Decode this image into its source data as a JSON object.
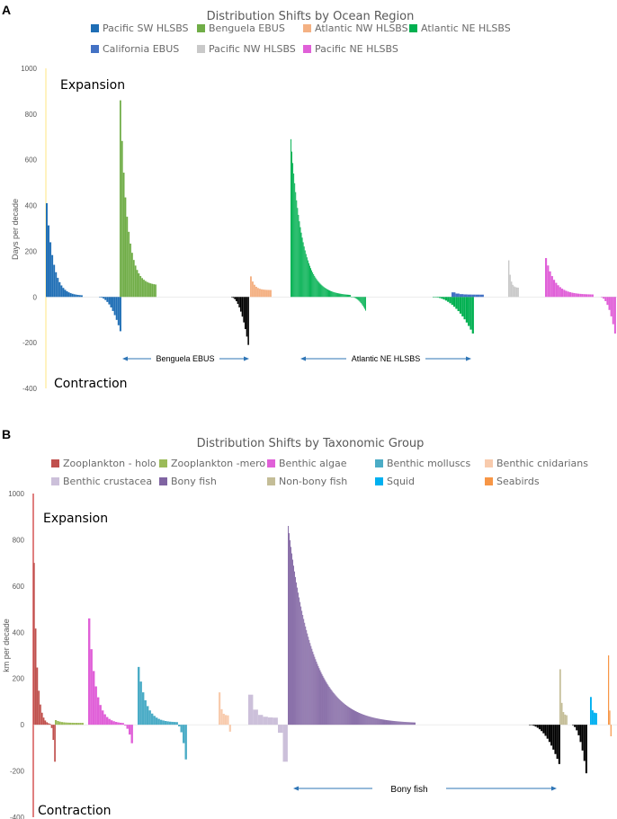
{
  "chart_data": [
    {
      "panel": "A",
      "type": "bar",
      "title": "Distribution Shifts by Ocean Region",
      "ylabel": "Days per decade",
      "ylim": [
        -400,
        1000
      ],
      "yticks": [
        -400,
        -200,
        0,
        200,
        400,
        600,
        800,
        1000
      ],
      "expansion_label": "Expansion",
      "contraction_label": "Contraction",
      "legend": [
        {
          "name": "Pacific SW HLSBS",
          "color": "#1f6eb5"
        },
        {
          "name": "Benguela EBUS",
          "color": "#70ad47"
        },
        {
          "name": "Atlantic NW HLSBS",
          "color": "#f4b183"
        },
        {
          "name": "Atlantic NE HLSBS",
          "color": "#00b050"
        },
        {
          "name": "California EBUS",
          "color": "#4472c4"
        },
        {
          "name": "Pacific NW HLSBS",
          "color": "#c9c9c9"
        },
        {
          "name": "Pacific NE HLSBS",
          "color": "#e060d8"
        }
      ],
      "groups": [
        {
          "name": "Pacific SW HLSBS",
          "color": "#1f6eb5",
          "n": 20,
          "max": 410,
          "min": 0,
          "tail": 5
        },
        {
          "name": "Pacific SW HLSBS (contraction)",
          "color": "#1f6eb5",
          "n": 12,
          "max": 0,
          "min": -150,
          "tail": 0
        },
        {
          "name": "Benguela EBUS",
          "color": "#70ad47",
          "n": 22,
          "max": 860,
          "min": 50,
          "tail": 50
        },
        {
          "name": "Benguela EBUS (contraction)",
          "color": "#000000",
          "n": 12,
          "max": 0,
          "min": -210,
          "tail": 0
        },
        {
          "name": "Atlantic NW HLSBS",
          "color": "#f4b183",
          "n": 12,
          "max": 90,
          "min": 0,
          "tail": 30
        },
        {
          "name": "Atlantic NE HLSBS",
          "color": "#00b050",
          "n": 80,
          "max": 690,
          "min": -60,
          "tail": 5
        },
        {
          "name": "Atlantic NE HLSBS (contraction)",
          "color": "#00b050",
          "n": 20,
          "max": 0,
          "min": -160,
          "tail": 0
        },
        {
          "name": "California EBUS",
          "color": "#4472c4",
          "n": 8,
          "max": 20,
          "min": 0,
          "tail": 10
        },
        {
          "name": "Pacific NW HLSBS",
          "color": "#c9c9c9",
          "n": 8,
          "max": 160,
          "min": 0,
          "tail": 40
        },
        {
          "name": "Pacific NE HLSBS",
          "color": "#e060d8",
          "n": 24,
          "max": 170,
          "min": 0,
          "tail": 10
        },
        {
          "name": "Pacific NE HLSBS (contraction)",
          "color": "#e060d8",
          "n": 8,
          "max": 0,
          "min": -160,
          "tail": 0
        }
      ],
      "annotations": [
        {
          "text": "Benguela EBUS"
        },
        {
          "text": "Atlantic NE HLSBS"
        }
      ]
    },
    {
      "panel": "B",
      "type": "bar",
      "title": "Distribution Shifts by Taxonomic Group",
      "ylabel": "km per decade",
      "ylim": [
        -400,
        1000
      ],
      "yticks": [
        -400,
        -200,
        0,
        200,
        400,
        600,
        800,
        1000
      ],
      "expansion_label": "Expansion",
      "contraction_label": "Contraction",
      "legend": [
        {
          "name": "Zooplankton - holo",
          "color": "#c0504d"
        },
        {
          "name": "Zooplankton -mero",
          "color": "#9bbb59"
        },
        {
          "name": "Benthic algae",
          "color": "#e060d8"
        },
        {
          "name": "Benthic molluscs",
          "color": "#4bacc6"
        },
        {
          "name": "Benthic cnidarians",
          "color": "#f8cbad"
        },
        {
          "name": "Benthic crustacea",
          "color": "#ccc0da"
        },
        {
          "name": "Bony fish",
          "color": "#8064a2"
        },
        {
          "name": "Non-bony fish",
          "color": "#c4bd97"
        },
        {
          "name": "Squid",
          "color": "#00b0f0"
        },
        {
          "name": "Seabirds",
          "color": "#f79646"
        }
      ],
      "groups": [
        {
          "name": "Zooplankton - holo",
          "color": "#c0504d",
          "n": 14,
          "max": 700,
          "min": -160,
          "tail": 0
        },
        {
          "name": "Zooplankton -mero",
          "color": "#9bbb59",
          "n": 14,
          "max": 20,
          "min": 0,
          "tail": 8
        },
        {
          "name": "Benthic algae",
          "color": "#e060d8",
          "n": 20,
          "max": 460,
          "min": -80,
          "tail": 5
        },
        {
          "name": "Benthic molluscs",
          "color": "#4bacc6",
          "n": 22,
          "max": 250,
          "min": -150,
          "tail": 10
        },
        {
          "name": "Benthic cnidarians",
          "color": "#f8cbad",
          "n": 6,
          "max": 140,
          "min": -30,
          "tail": 40
        },
        {
          "name": "Benthic crustacea",
          "color": "#ccc0da",
          "n": 8,
          "max": 130,
          "min": -160,
          "tail": 30
        },
        {
          "name": "Bony fish",
          "color": "#8064a2",
          "n": 140,
          "max": 860,
          "min": 0,
          "tail": 5
        },
        {
          "name": "Non-bony fish",
          "color": "#c4bd97",
          "n": 5,
          "max": 240,
          "min": 0,
          "tail": 40
        },
        {
          "name": "Non-bony fish (contraction)",
          "color": "#000000",
          "n": 16,
          "max": 0,
          "min": -170,
          "tail": 0
        },
        {
          "name": "Squid",
          "color": "#00b0f0",
          "n": 4,
          "max": 120,
          "min": 0,
          "tail": 50
        },
        {
          "name": "Squid (contraction)",
          "color": "#000000",
          "n": 8,
          "max": 0,
          "min": -210,
          "tail": 0
        },
        {
          "name": "Seabirds",
          "color": "#f79646",
          "n": 3,
          "max": 300,
          "min": -50,
          "tail": 60
        }
      ],
      "annotations": [
        {
          "text": "Bony fish"
        }
      ]
    }
  ],
  "panelA": {
    "letter": "A"
  },
  "panelB": {
    "letter": "B"
  }
}
